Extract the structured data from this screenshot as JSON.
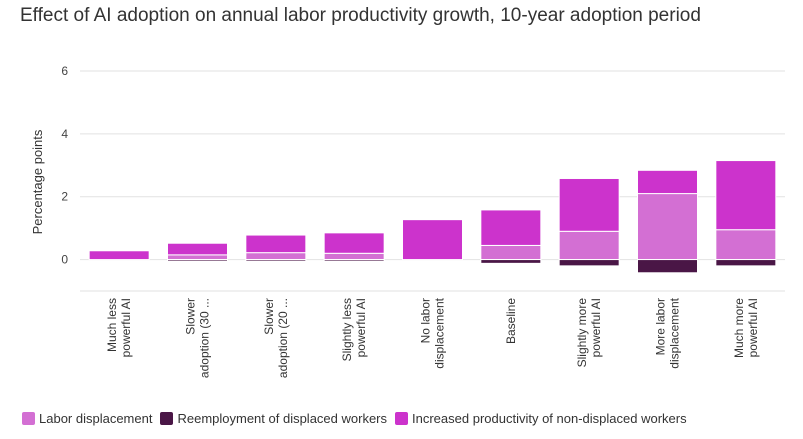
{
  "chart_data": {
    "type": "bar",
    "stacked": true,
    "title": "Effect of AI adoption on annual labor productivity growth, 10-year adoption period",
    "ylabel": "Percentage points",
    "xlabel": "",
    "ylim": [
      -1,
      6
    ],
    "yticks": [
      0,
      2,
      4,
      6
    ],
    "grid": true,
    "legend_position": "bottom",
    "categories": [
      [
        "Much less",
        "powerful AI"
      ],
      [
        "Slower",
        "adoption (30 ..."
      ],
      [
        "Slower",
        "adoption (20 ..."
      ],
      [
        "Slightly less",
        "powerful AI"
      ],
      [
        "No labor",
        "displacement"
      ],
      [
        "Baseline"
      ],
      [
        "Slightly more",
        "powerful AI"
      ],
      [
        "More labor",
        "displacement"
      ],
      [
        "Much more",
        "powerful AI"
      ]
    ],
    "series": [
      {
        "name": "Labor displacement",
        "color": "#d36fd3",
        "values": [
          0.0,
          0.15,
          0.22,
          0.2,
          0.0,
          0.45,
          0.9,
          2.1,
          0.95
        ]
      },
      {
        "name": "Reemployment of displaced workers",
        "color": "#4a1646",
        "values": [
          0.0,
          -0.05,
          -0.05,
          -0.05,
          0.0,
          -0.12,
          -0.2,
          -0.42,
          -0.2
        ]
      },
      {
        "name": "Increased productivity of non-displaced workers",
        "color": "#cc33cc",
        "values": [
          0.28,
          0.37,
          0.56,
          0.65,
          1.27,
          1.13,
          1.68,
          0.74,
          2.2
        ]
      }
    ]
  }
}
